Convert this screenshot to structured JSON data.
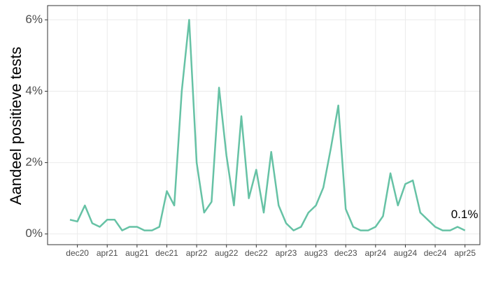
{
  "chart_data": {
    "type": "line",
    "y_label": "Aandeel positieve tests",
    "annotation": "0.1%",
    "x": [
      "2020-11",
      "2020-12",
      "2021-01",
      "2021-02",
      "2021-03",
      "2021-04",
      "2021-05",
      "2021-06",
      "2021-07",
      "2021-08",
      "2021-09",
      "2021-10",
      "2021-11",
      "2021-12",
      "2022-01",
      "2022-02",
      "2022-03",
      "2022-04",
      "2022-05",
      "2022-06",
      "2022-07",
      "2022-08",
      "2022-09",
      "2022-10",
      "2022-11",
      "2022-12",
      "2023-01",
      "2023-02",
      "2023-03",
      "2023-04",
      "2023-05",
      "2023-06",
      "2023-07",
      "2023-08",
      "2023-09",
      "2023-10",
      "2023-11",
      "2023-12",
      "2024-01",
      "2024-02",
      "2024-03",
      "2024-04",
      "2024-05",
      "2024-06",
      "2024-07",
      "2024-08",
      "2024-09",
      "2024-10",
      "2024-11",
      "2024-12",
      "2025-01",
      "2025-02",
      "2025-03",
      "2025-04"
    ],
    "series": [
      {
        "color": "#66c2a5",
        "values": [
          0.4,
          0.35,
          0.8,
          0.3,
          0.2,
          0.4,
          0.4,
          0.1,
          0.2,
          0.2,
          0.1,
          0.1,
          0.2,
          1.2,
          0.8,
          4.0,
          6.0,
          2.0,
          0.6,
          0.9,
          4.1,
          2.2,
          0.8,
          3.3,
          1.0,
          1.8,
          0.6,
          2.3,
          0.8,
          0.3,
          0.1,
          0.2,
          0.6,
          0.8,
          1.3,
          2.4,
          3.6,
          0.7,
          0.2,
          0.1,
          0.1,
          0.2,
          0.5,
          1.7,
          0.8,
          1.4,
          1.5,
          0.6,
          0.4,
          0.2,
          0.1,
          0.1,
          0.2,
          0.1
        ]
      }
    ],
    "xlim": [
      "2020-08",
      "2025-06"
    ],
    "xticks": [
      {
        "value": "2020-12",
        "label": "dec20"
      },
      {
        "value": "2021-04",
        "label": "apr21"
      },
      {
        "value": "2021-08",
        "label": "aug21"
      },
      {
        "value": "2021-12",
        "label": "dec21"
      },
      {
        "value": "2022-04",
        "label": "apr22"
      },
      {
        "value": "2022-08",
        "label": "aug22"
      },
      {
        "value": "2022-12",
        "label": "dec22"
      },
      {
        "value": "2023-04",
        "label": "apr23"
      },
      {
        "value": "2023-08",
        "label": "aug23"
      },
      {
        "value": "2023-12",
        "label": "dec23"
      },
      {
        "value": "2024-04",
        "label": "apr24"
      },
      {
        "value": "2024-08",
        "label": "aug24"
      },
      {
        "value": "2024-12",
        "label": "dec24"
      },
      {
        "value": "2025-04",
        "label": "apr25"
      }
    ],
    "ylim": [
      -0.3,
      6.4
    ],
    "yticks": [
      {
        "value": 0,
        "label": "0%"
      },
      {
        "value": 2,
        "label": "2%"
      },
      {
        "value": 4,
        "label": "4%"
      },
      {
        "value": 6,
        "label": "6%"
      }
    ],
    "grid": true
  }
}
